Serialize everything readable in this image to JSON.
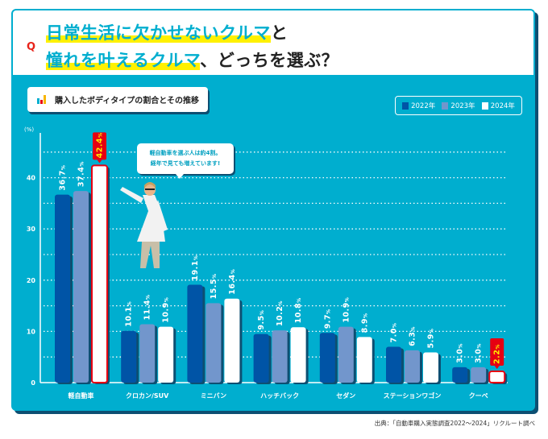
{
  "header": {
    "q_mark": "Q",
    "title_line1_highlight": "日常生活に欠かせないクルマ",
    "title_line1_rest": "と",
    "title_line2_highlight": "憧れを叶えるクルマ",
    "title_line2_rest": "、どっちを選ぶ？"
  },
  "subtitle": "購入したボディタイプの割合とその推移",
  "bubble": {
    "line1": "軽自動車を選ぶ人は約4割。",
    "line2": "経年で見ても増えています!"
  },
  "source": "出典：「自動車購入実態調査2022～2024」リクルート調べ",
  "colors": {
    "panel": "#00aecf",
    "y2022": "#0054a6",
    "y2023": "#7296cc",
    "y2024": "#ffffff",
    "highlight": "#e60012",
    "highlight_text": "#fff100"
  },
  "chart_data": {
    "type": "bar",
    "ylabel": "(%)",
    "ylim": [
      0,
      45
    ],
    "yticks": [
      0,
      10,
      20,
      30,
      40
    ],
    "grid": true,
    "legend_position": "top-right",
    "categories": [
      "軽自動車",
      "クロカン/SUV",
      "ミニバン",
      "ハッチバック",
      "セダン",
      "ステーションワゴン",
      "クーペ"
    ],
    "series": [
      {
        "name": "2022年",
        "values": [
          36.7,
          10.1,
          19.1,
          9.5,
          9.7,
          7.0,
          3.0
        ]
      },
      {
        "name": "2023年",
        "values": [
          37.4,
          11.4,
          15.5,
          10.2,
          10.9,
          6.3,
          3.0
        ]
      },
      {
        "name": "2024年",
        "values": [
          42.4,
          10.9,
          16.4,
          10.8,
          8.9,
          5.9,
          2.2
        ]
      }
    ],
    "highlighted": [
      {
        "category": "軽自動車",
        "series": "2024年"
      },
      {
        "category": "クーペ",
        "series": "2024年"
      }
    ],
    "value_suffix": "%"
  }
}
